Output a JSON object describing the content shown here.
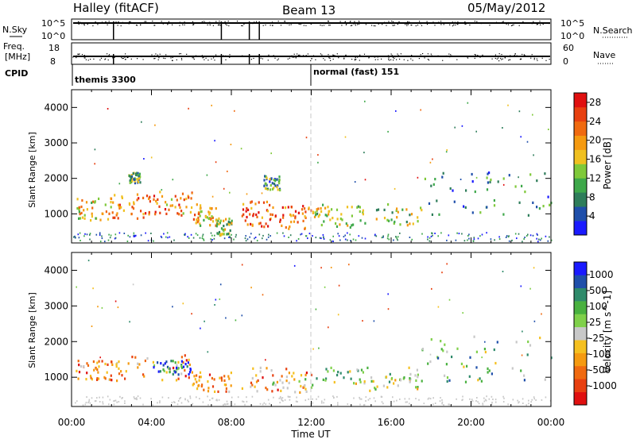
{
  "header": {
    "station": "Halley (fitACF)",
    "beam": "Beam 13",
    "date": "05/May/2012"
  },
  "strips": {
    "nsky_label": "N.Sky",
    "nsearch_label": "N.Search",
    "freq_label_1": "Freq.",
    "freq_label_2": "[MHz]",
    "nave_label": "Nave",
    "cpid_label": "CPID",
    "nsky_ticks": [
      "10^5",
      "10^0"
    ],
    "nsearch_ticks": [
      "10^5",
      "10^0"
    ],
    "freq_ticks": [
      "18",
      "8"
    ],
    "nave_ticks": [
      "60",
      "0"
    ],
    "cpid_segments": [
      {
        "label": "themis 3300",
        "start_hour": 0
      },
      {
        "label": "normal (fast) 151",
        "start_hour": 12
      }
    ],
    "gap_hours": [
      2.1,
      7.5,
      8.9,
      9.4
    ]
  },
  "colors": {
    "power_scale": [
      "#1a1aff",
      "#1f4faa",
      "#2e7d5a",
      "#3ea84a",
      "#7fc93a",
      "#f0c020",
      "#f59a10",
      "#f06a10",
      "#e84010",
      "#e01010"
    ],
    "velocity_scale": [
      "#1a1aff",
      "#1f4faa",
      "#2e8a6a",
      "#49b13f",
      "#7fd04a",
      "#c8c8c8",
      "#f5c020",
      "#f59a10",
      "#f06a10",
      "#e84010",
      "#e01010"
    ]
  },
  "chart_data": [
    {
      "type": "heatmap",
      "name": "power",
      "xlabel": "",
      "ylabel": "Slant Range [km]",
      "xlim": [
        0,
        24
      ],
      "ylim": [
        180,
        4500
      ],
      "yticks": [
        "1000",
        "2000",
        "3000",
        "4000"
      ],
      "colorbar_label": "Power [dB]",
      "colorbar_ticks": [
        "4",
        "8",
        "12",
        "16",
        "20",
        "24",
        "28"
      ],
      "colorbar_range": [
        0,
        30
      ],
      "reference_line_hour": 12,
      "blobs": [
        {
          "t0": 0.2,
          "t1": 2.0,
          "r0": 850,
          "r1": 1500,
          "level": 0.55
        },
        {
          "t0": 2.0,
          "t1": 4.0,
          "r0": 900,
          "r1": 1600,
          "level": 0.75
        },
        {
          "t0": 4.0,
          "t1": 6.0,
          "r0": 950,
          "r1": 1650,
          "level": 0.7
        },
        {
          "t0": 6.0,
          "t1": 7.2,
          "r0": 700,
          "r1": 1300,
          "level": 0.6
        },
        {
          "t0": 7.2,
          "t1": 8.0,
          "r0": 400,
          "r1": 900,
          "level": 0.45
        },
        {
          "t0": 8.5,
          "t1": 10.0,
          "r0": 650,
          "r1": 1400,
          "level": 0.8
        },
        {
          "t0": 10.0,
          "t1": 12.0,
          "r0": 600,
          "r1": 1300,
          "level": 0.75
        },
        {
          "t0": 12.0,
          "t1": 14.0,
          "r0": 650,
          "r1": 1300,
          "level": 0.5
        },
        {
          "t0": 14.0,
          "t1": 17.5,
          "r0": 700,
          "r1": 1300,
          "level": 0.45
        },
        {
          "t0": 2.8,
          "t1": 3.4,
          "r0": 1900,
          "r1": 2200,
          "level": 0.35
        },
        {
          "t0": 9.6,
          "t1": 10.4,
          "r0": 1700,
          "r1": 2100,
          "level": 0.3
        },
        {
          "t0": 17.5,
          "t1": 24.0,
          "r0": 900,
          "r1": 2200,
          "level": 0.25
        }
      ]
    },
    {
      "type": "heatmap",
      "name": "velocity",
      "xlabel": "Time UT",
      "ylabel": "Slant Range [km]",
      "xlim": [
        0,
        24
      ],
      "ylim": [
        180,
        4500
      ],
      "xticks": [
        "00:00",
        "04:00",
        "08:00",
        "12:00",
        "16:00",
        "20:00",
        "00:00"
      ],
      "yticks": [
        "1000",
        "2000",
        "3000",
        "4000"
      ],
      "colorbar_label": "Velocity [m s^-1]",
      "colorbar_ticks": [
        "1000",
        "500",
        "100",
        "25",
        "-25",
        "-100",
        "-500",
        "-1000"
      ],
      "reference_line_hour": 12,
      "blobs": [
        {
          "t0": 0.2,
          "t1": 2.0,
          "r0": 900,
          "r1": 1500,
          "level": 0.75
        },
        {
          "t0": 2.0,
          "t1": 6.0,
          "r0": 900,
          "r1": 1650,
          "level": 0.7
        },
        {
          "t0": 4.0,
          "t1": 6.0,
          "r0": 1100,
          "r1": 1500,
          "level": 0.2
        },
        {
          "t0": 6.0,
          "t1": 8.0,
          "r0": 600,
          "r1": 1200,
          "level": 0.72
        },
        {
          "t0": 8.5,
          "t1": 12.0,
          "r0": 600,
          "r1": 1300,
          "level": 0.7
        },
        {
          "t0": 10.0,
          "t1": 17.5,
          "r0": 650,
          "r1": 1000,
          "level": 0.5
        },
        {
          "t0": 12.0,
          "t1": 17.5,
          "r0": 900,
          "r1": 1300,
          "level": 0.4
        },
        {
          "t0": 17.5,
          "t1": 24.0,
          "r0": 900,
          "r1": 2200,
          "level": 0.35
        }
      ]
    }
  ]
}
